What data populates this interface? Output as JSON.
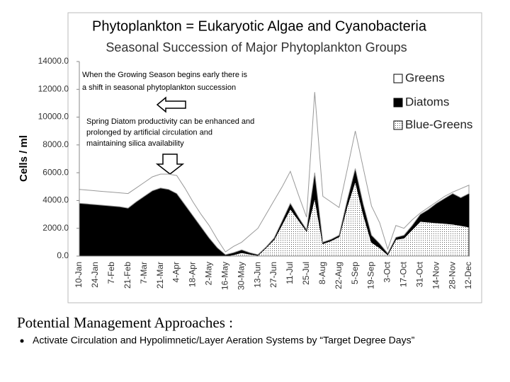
{
  "chart_data": {
    "type": "stacked_area",
    "slide_title": "Phytoplankton = Eukaryotic Algae and Cyanobacteria",
    "title": "Seasonal Succession of Major Phytoplankton Groups",
    "ylabel": "Cells / ml",
    "annotations": [
      [
        "When the Growing Season begins early there is",
        "a shift in seasonal phytoplankton succession"
      ],
      [
        "Spring Diatom productivity can be enhanced and",
        "prolonged by artificial circulation and",
        "maintaining silica availability"
      ]
    ],
    "categories": [
      "10-Jan",
      null,
      "24-Jan",
      null,
      "7-Feb",
      null,
      "21-Feb",
      null,
      "7-Mar",
      null,
      "21-Mar",
      null,
      "4-Apr",
      null,
      "18-Apr",
      null,
      "2-May",
      null,
      "16-May",
      null,
      "30-May",
      null,
      "13-Jun",
      null,
      "27-Jun",
      null,
      "11-Jul",
      null,
      "25-Jul",
      null,
      "8-Aug",
      null,
      "22-Aug",
      null,
      "5-Sep",
      null,
      "19-Sep",
      null,
      "3-Oct",
      null,
      "17-Oct",
      null,
      "31-Oct",
      null,
      "14-Nov",
      null,
      "28-Nov",
      null,
      "12-Dec"
    ],
    "series": [
      {
        "name": "Greens",
        "color": "#ffffff",
        "values": [
          1000,
          1000,
          1000,
          1000,
          1000,
          1000,
          1050,
          1000,
          1000,
          1000,
          1000,
          1100,
          1300,
          1200,
          1000,
          900,
          900,
          600,
          200,
          450,
          550,
          1250,
          1900,
          2350,
          2700,
          2450,
          2300,
          1600,
          900,
          5800,
          3300,
          2700,
          2000,
          2200,
          2700,
          2600,
          2100,
          1500,
          300,
          850,
          500,
          400,
          100,
          150,
          100,
          150,
          100,
          650,
          600
        ]
      },
      {
        "name": "Diatoms",
        "color": "#000000",
        "values": [
          3800,
          3750,
          3700,
          3650,
          3600,
          3550,
          3450,
          3900,
          4300,
          4700,
          4900,
          4800,
          4500,
          3700,
          2900,
          2100,
          1300,
          600,
          100,
          150,
          200,
          100,
          50,
          50,
          100,
          250,
          400,
          200,
          100,
          1800,
          100,
          100,
          100,
          400,
          900,
          700,
          500,
          300,
          100,
          150,
          200,
          300,
          500,
          900,
          1400,
          1800,
          2200,
          2000,
          2400
        ]
      },
      {
        "name": "Blue-Greens",
        "color": "#bbbbbb",
        "values": [
          0,
          0,
          0,
          0,
          0,
          0,
          0,
          0,
          0,
          0,
          0,
          0,
          0,
          0,
          0,
          0,
          0,
          0,
          0,
          100,
          250,
          150,
          50,
          600,
          1200,
          2300,
          3400,
          2600,
          1800,
          4200,
          900,
          1100,
          1400,
          3600,
          5400,
          3000,
          1000,
          600,
          100,
          1200,
          1300,
          1900,
          2500,
          2450,
          2400,
          2350,
          2300,
          2200,
          2100
        ]
      }
    ],
    "ylim": [
      0,
      14000
    ],
    "yticks": [
      {
        "value": 0,
        "label": "0.0"
      },
      {
        "value": 2000,
        "label": "2000.0"
      },
      {
        "value": 4000,
        "label": "4000.0"
      },
      {
        "value": 6000,
        "label": "6000.0"
      },
      {
        "value": 8000,
        "label": "8000.0"
      },
      {
        "value": 10000,
        "label": "10000.0"
      },
      {
        "value": 12000,
        "label": "12000.0"
      },
      {
        "value": 14000,
        "label": "14000.0"
      }
    ],
    "grid": false
  },
  "footer": {
    "heading": "Potential   Management Approaches    :",
    "bullets": [
      "Activate Circulation and Hypolimnetic/Layer Aeration Systems by “Target Degree Days”"
    ]
  }
}
